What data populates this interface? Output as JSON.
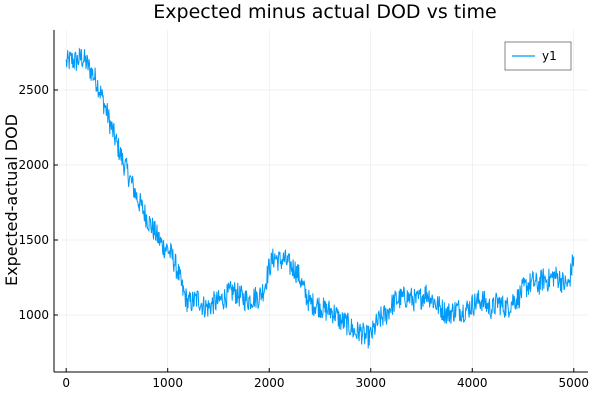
{
  "chart_data": {
    "type": "line",
    "title": "Expected minus actual DOD vs time",
    "xlabel": "",
    "ylabel": "Expected-actual DOD",
    "xlim": [
      -120,
      5140
    ],
    "ylim": [
      620,
      2900
    ],
    "xticks": [
      0,
      1000,
      2000,
      3000,
      4000,
      5000
    ],
    "yticks": [
      1000,
      1500,
      2000,
      2500
    ],
    "grid": true,
    "legend_position": "top-right",
    "series": [
      {
        "name": "y1",
        "color": "#009af9",
        "noise_amplitude": 80,
        "x": [
          0,
          50,
          100,
          150,
          200,
          250,
          300,
          350,
          400,
          450,
          500,
          550,
          600,
          650,
          700,
          750,
          800,
          850,
          900,
          950,
          1000,
          1050,
          1100,
          1150,
          1200,
          1250,
          1300,
          1350,
          1400,
          1450,
          1500,
          1550,
          1600,
          1650,
          1700,
          1750,
          1800,
          1850,
          1900,
          1950,
          2000,
          2050,
          2100,
          2150,
          2200,
          2250,
          2300,
          2350,
          2400,
          2450,
          2500,
          2550,
          2600,
          2650,
          2700,
          2750,
          2800,
          2850,
          2900,
          2950,
          3000,
          3050,
          3100,
          3150,
          3200,
          3250,
          3300,
          3350,
          3400,
          3450,
          3500,
          3550,
          3600,
          3650,
          3700,
          3750,
          3800,
          3850,
          3900,
          3950,
          4000,
          4050,
          4100,
          4150,
          4200,
          4250,
          4300,
          4350,
          4400,
          4450,
          4500,
          4550,
          4600,
          4650,
          4700,
          4750,
          4800,
          4850,
          4900,
          4950,
          5000
        ],
        "y": [
          2680,
          2700,
          2690,
          2720,
          2680,
          2620,
          2560,
          2460,
          2350,
          2240,
          2140,
          2040,
          1960,
          1870,
          1780,
          1710,
          1640,
          1580,
          1520,
          1460,
          1440,
          1380,
          1290,
          1160,
          1080,
          1090,
          1110,
          1060,
          1050,
          1080,
          1090,
          1110,
          1140,
          1160,
          1130,
          1110,
          1100,
          1120,
          1120,
          1180,
          1320,
          1390,
          1360,
          1370,
          1330,
          1310,
          1250,
          1150,
          1080,
          1070,
          1060,
          1030,
          1030,
          1010,
          960,
          950,
          920,
          880,
          890,
          850,
          860,
          930,
          980,
          1000,
          1060,
          1100,
          1110,
          1120,
          1110,
          1090,
          1120,
          1150,
          1110,
          1070,
          1040,
          1010,
          1020,
          1040,
          1030,
          1040,
          1070,
          1090,
          1100,
          1060,
          1040,
          1090,
          1060,
          1050,
          1100,
          1110,
          1170,
          1200,
          1220,
          1200,
          1240,
          1230,
          1260,
          1250,
          1210,
          1200,
          1390
        ]
      }
    ]
  }
}
